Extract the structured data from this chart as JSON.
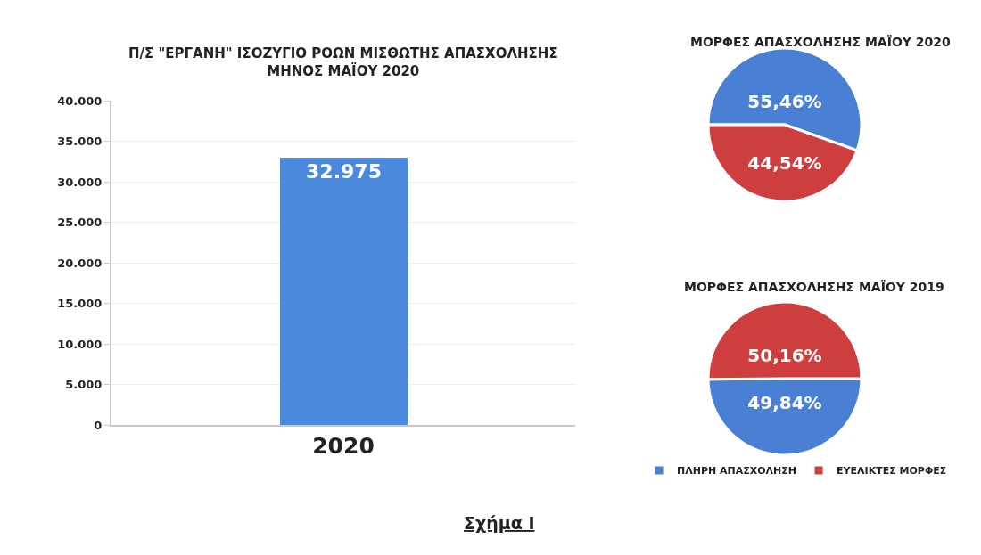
{
  "chart_data": [
    {
      "type": "bar",
      "title": "Π/Σ \"ΕΡΓΑΝΗ\" ΙΣΟΖΥΓΙΟ ΡΟΩΝ ΜΙΣΘΩΤΗΣ ΑΠΑΣΧΟΛΗΣΗΣ\nΜΗΝΟΣ ΜΑΪΟΥ 2020",
      "categories": [
        "2020"
      ],
      "values": [
        32975
      ],
      "value_labels": [
        "32.975"
      ],
      "color": "#4a89dc",
      "ylim": [
        0,
        40000
      ],
      "yticks": [
        0,
        {
          "value": 5000,
          "label": "5.000"
        },
        {
          "value": 10000,
          "label": "10.000"
        },
        {
          "value": 15000,
          "label": "15.000"
        },
        {
          "value": 20000,
          "label": "20.000"
        },
        {
          "value": 25000,
          "label": "25.000"
        },
        {
          "value": 30000,
          "label": "30.000"
        },
        {
          "value": 35000,
          "label": "35.000"
        },
        {
          "value": 40000,
          "label": "40.000"
        }
      ],
      "grid": "y",
      "annotations": [
        "Σχήμα Ι"
      ]
    },
    {
      "type": "pie",
      "categories": [
        "ΠΛΗΡΗ ΑΠΑΣΧΟΛΗΣΗ",
        "ΕΥΕΛΙΚΤΕΣ ΜΟΡΦΕΣ"
      ],
      "colors": [
        "#4a80d4",
        "#cf3e3e"
      ],
      "legend": "bottom",
      "series": [
        {
          "name": "ΜΟΡΦΕΣ ΑΠΑΣΧΟΛΗΣΗΣ ΜΑΪΟΥ 2020",
          "values": [
            55.46,
            44.54
          ],
          "value_labels": [
            "55,46%",
            "44,54%"
          ]
        },
        {
          "name": "ΜΟΡΦΕΣ ΑΠΑΣΧΟΛΗΣΗΣ ΜΑΪΟΥ 2019",
          "values": [
            49.84,
            50.16
          ],
          "value_labels": [
            "49,84%",
            "50,16%"
          ]
        }
      ]
    }
  ]
}
